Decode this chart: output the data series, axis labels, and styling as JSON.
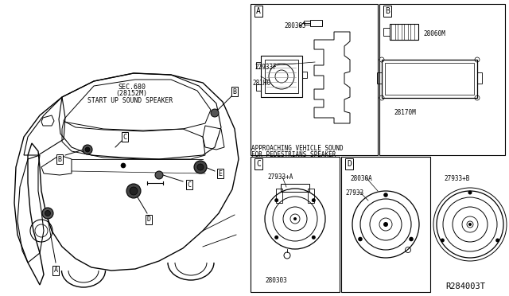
{
  "bg_color": "#ffffff",
  "fig_width": 6.4,
  "fig_height": 3.72,
  "dpi": 100,
  "ref_number": "R284003T",
  "panels": {
    "A_label": "A",
    "B_label": "B",
    "C_label": "C",
    "D_label": "D",
    "A_parts": [
      "28038J",
      "27933F",
      "281H0"
    ],
    "A_caption_line1": "APPROACHING VEHICLE SOUND",
    "A_caption_line2": "FOR PEDESTRIANS SPEAKER",
    "B_parts": [
      "28060M",
      "28170M"
    ],
    "C_parts": [
      "27933+A",
      "280303"
    ],
    "D_parts": [
      "28030A",
      "27933"
    ],
    "E_parts": [
      "27933+B"
    ]
  },
  "car_labels": {
    "sec_line1": "SEC.680",
    "sec_line2": "(28152M)",
    "startup": "START UP SOUND SPEAKER"
  }
}
